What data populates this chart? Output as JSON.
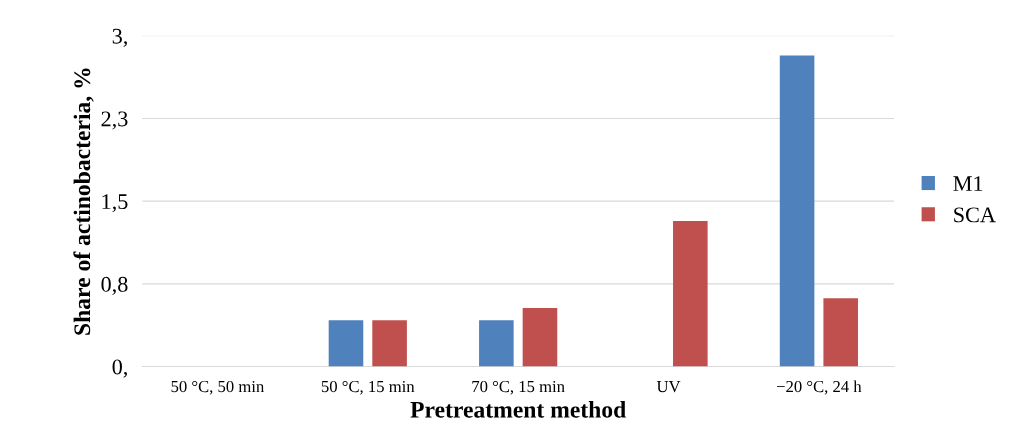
{
  "chart_data": {
    "type": "bar",
    "xlabel": "Pretreatment method",
    "ylabel": "Share of actinobacteria, %",
    "categories": [
      "50 °C, 50 min",
      "50 °C, 15 min",
      "70 °C, 15 min",
      "UV",
      "−20 °C, 24 h"
    ],
    "series": [
      {
        "name": "M1",
        "color": "#4f81bd",
        "values": [
          0,
          0.42,
          0.42,
          0,
          2.82
        ]
      },
      {
        "name": "SCA",
        "color": "#c0504d",
        "values": [
          0,
          0.42,
          0.53,
          1.32,
          0.62
        ]
      }
    ],
    "ylim": [
      0,
      3
    ],
    "yticks": [
      {
        "value": 0,
        "label": "0,"
      },
      {
        "value": 0.75,
        "label": "0,8"
      },
      {
        "value": 1.5,
        "label": "1,5"
      },
      {
        "value": 2.25,
        "label": "2,3"
      },
      {
        "value": 3,
        "label": "3,"
      }
    ],
    "grid": "y",
    "legend": "right"
  }
}
